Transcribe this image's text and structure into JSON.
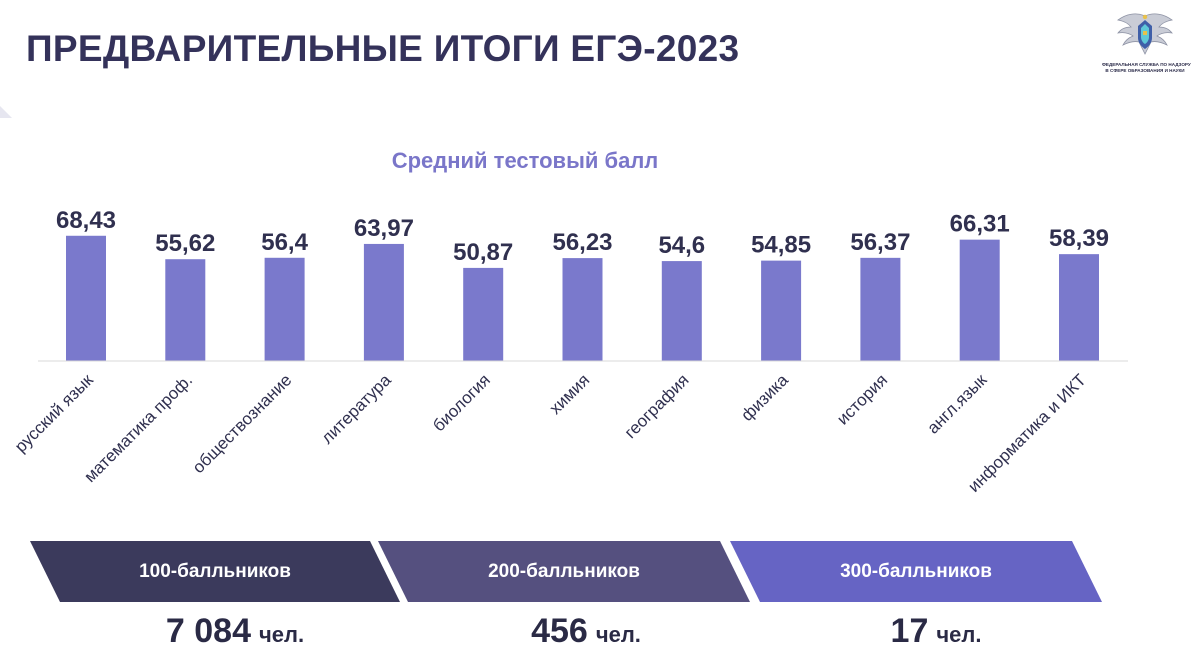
{
  "page": {
    "title": "ПРЕДВАРИТЕЛЬНЫЕ ИТОГИ ЕГЭ-2023",
    "logo_text_line1": "ФЕДЕРАЛЬНАЯ СЛУЖБА ПО НАДЗОРУ",
    "logo_text_line2": "В СФЕРЕ ОБРАЗОВАНИЯ И НАУКИ"
  },
  "chart_data": {
    "type": "bar",
    "title": "Средний тестовый балл",
    "categories": [
      "русский язык",
      "математика проф.",
      "обществознание",
      "литература",
      "биология",
      "химия",
      "география",
      "физика",
      "история",
      "англ.язык",
      "информатика и ИКТ"
    ],
    "values": [
      68.43,
      55.62,
      56.4,
      63.97,
      50.87,
      56.23,
      54.6,
      54.85,
      56.37,
      66.31,
      58.39
    ],
    "value_labels": [
      "68,43",
      "55,62",
      "56,4",
      "63,97",
      "50,87",
      "56,23",
      "54,6",
      "54,85",
      "56,37",
      "66,31",
      "58,39"
    ],
    "xlabel": "",
    "ylabel": "",
    "grid": false,
    "bar_color": "#7a79cc"
  },
  "summary": {
    "items": [
      {
        "label": "100-балльников",
        "value": "7 084",
        "unit": "чел.",
        "color": "#3b3a5c"
      },
      {
        "label": "200-балльников",
        "value": "456",
        "unit": "чел.",
        "color": "#55507f"
      },
      {
        "label": "300-балльников",
        "value": "17",
        "unit": "чел.",
        "color": "#6664c4"
      }
    ]
  }
}
